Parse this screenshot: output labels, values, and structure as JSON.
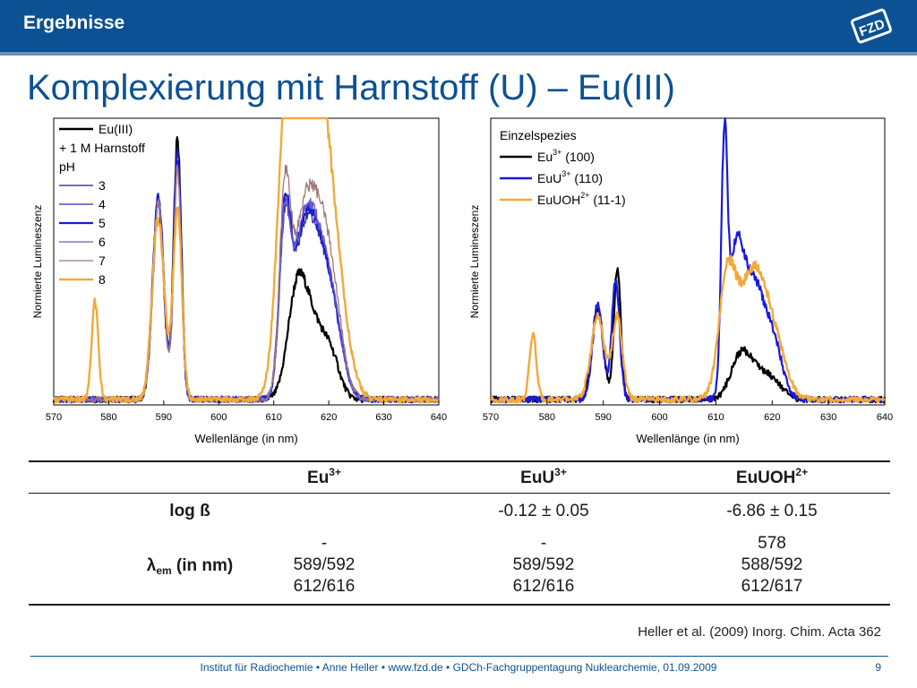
{
  "header": {
    "section": "Ergebnisse",
    "logo_text": "FZD"
  },
  "title": "Komplexierung mit Harnstoff (U) – Eu(III)",
  "colors": {
    "brand_blue": "#0b5193",
    "accent_light": "#6f8fb8",
    "orange": "#f2a93b"
  },
  "chart_data": [
    {
      "type": "line",
      "xlabel": "Wellenlänge (in nm)",
      "ylabel": "Normierte Lumineszenz",
      "xlim": [
        570,
        640
      ],
      "ylim": [
        0,
        1.05
      ],
      "x_ticks": [
        "570",
        "580",
        "590",
        "600",
        "610",
        "620",
        "630",
        "640"
      ],
      "legend_position": "top-left",
      "legend": {
        "head": "Eu(III)",
        "subtitle1": "+ 1 M Harnstoff",
        "subtitle2": "pH",
        "items": [
          "3",
          "4",
          "5",
          "6",
          "7",
          "8"
        ]
      },
      "series": [
        {
          "name": "Eu(III)",
          "color": "#000000",
          "width": 2.2,
          "peaks": [
            [
              589,
              0.72,
              1.0
            ],
            [
              592.5,
              0.95,
              0.7
            ],
            [
              614,
              0.26,
              1.6
            ],
            [
              616.5,
              0.3,
              2.4
            ],
            [
              620.5,
              0.12,
              1.6
            ]
          ]
        },
        {
          "name": "3",
          "color": "#1a1a8c",
          "width": 1.3,
          "peaks": [
            [
              589,
              0.74,
              1.0
            ],
            [
              592.5,
              0.92,
              0.7
            ],
            [
              612,
              0.56,
              1.0
            ],
            [
              615,
              0.45,
              2.0
            ],
            [
              618,
              0.44,
              2.2
            ],
            [
              621,
              0.2,
              1.8
            ]
          ]
        },
        {
          "name": "4",
          "color": "#2b2bb0",
          "width": 1.3,
          "peaks": [
            [
              589,
              0.74,
              1.0
            ],
            [
              592.5,
              0.9,
              0.7
            ],
            [
              612,
              0.55,
              1.0
            ],
            [
              615,
              0.44,
              2.0
            ],
            [
              618,
              0.43,
              2.2
            ],
            [
              621,
              0.2,
              1.8
            ]
          ]
        },
        {
          "name": "5",
          "color": "#1a1adb",
          "width": 2.2,
          "peaks": [
            [
              589,
              0.74,
              1.0
            ],
            [
              592.5,
              0.88,
              0.7
            ],
            [
              612,
              0.58,
              1.0
            ],
            [
              615,
              0.46,
              2.0
            ],
            [
              618,
              0.44,
              2.2
            ],
            [
              621,
              0.2,
              1.8
            ]
          ]
        },
        {
          "name": "6",
          "color": "#6a5acd",
          "width": 1.3,
          "peaks": [
            [
              589,
              0.73,
              1.0
            ],
            [
              592.5,
              0.86,
              0.7
            ],
            [
              612,
              0.56,
              1.0
            ],
            [
              615,
              0.46,
              2.0
            ],
            [
              618,
              0.46,
              2.2
            ],
            [
              621,
              0.2,
              1.8
            ]
          ]
        },
        {
          "name": "7",
          "color": "#a07878",
          "width": 1.3,
          "peaks": [
            [
              589,
              0.72,
              1.0
            ],
            [
              592.5,
              0.84,
              0.7
            ],
            [
              612,
              0.66,
              1.0
            ],
            [
              615,
              0.5,
              2.0
            ],
            [
              618.2,
              0.54,
              2.2
            ],
            [
              621,
              0.22,
              1.8
            ]
          ]
        },
        {
          "name": "8",
          "color": "#f2a93b",
          "width": 2.4,
          "peaks": [
            [
              577.5,
              0.36,
              0.6
            ],
            [
              589,
              0.66,
              1.1
            ],
            [
              592.5,
              0.7,
              0.8
            ],
            [
              612.2,
              0.88,
              1.6
            ],
            [
              615,
              0.78,
              2.2
            ],
            [
              618.5,
              0.84,
              2.2
            ],
            [
              621.5,
              0.3,
              2.2
            ]
          ]
        }
      ]
    },
    {
      "type": "line",
      "xlabel": "Wellenlänge (in nm)",
      "ylabel": "Normierte Lumineszenz",
      "xlim": [
        570,
        640
      ],
      "ylim": [
        0,
        1.05
      ],
      "x_ticks": [
        "570",
        "580",
        "590",
        "600",
        "610",
        "620",
        "630",
        "640"
      ],
      "legend_position": "top-left",
      "legend": {
        "head": "Einzelspezies",
        "items": [
          {
            "name": "Eu",
            "sup": "3+",
            "rest": " (100)"
          },
          {
            "name": "EuU",
            "sup": "3+",
            "rest": " (110)"
          },
          {
            "name": "EuUOH",
            "sup": "2+",
            "rest": " (11-1)"
          }
        ]
      },
      "series": [
        {
          "name": "Eu3+ (100)",
          "color": "#000000",
          "width": 2.2,
          "peaks": [
            [
              589,
              0.33,
              1.0
            ],
            [
              592.5,
              0.49,
              0.6
            ],
            [
              614,
              0.1,
              1.6
            ],
            [
              616.5,
              0.12,
              2.3
            ],
            [
              620.5,
              0.05,
              1.6
            ]
          ]
        },
        {
          "name": "EuU3+ (110)",
          "color": "#1a1adb",
          "width": 2.2,
          "peaks": [
            [
              589,
              0.35,
              0.9
            ],
            [
              592.2,
              0.44,
              0.7
            ],
            [
              611.5,
              0.88,
              0.55
            ],
            [
              613.5,
              0.4,
              1.2
            ],
            [
              616.5,
              0.44,
              2.3
            ],
            [
              620.5,
              0.14,
              1.5
            ]
          ]
        },
        {
          "name": "EuUOH2+ (11-1)",
          "color": "#f2a93b",
          "width": 2.4,
          "peaks": [
            [
              577.5,
              0.24,
              0.6
            ],
            [
              589,
              0.3,
              1.2
            ],
            [
              592.5,
              0.3,
              0.9
            ],
            [
              612,
              0.42,
              1.5
            ],
            [
              616.5,
              0.46,
              2.4
            ],
            [
              620.5,
              0.17,
              2.0
            ]
          ]
        }
      ]
    }
  ],
  "table": {
    "columns": [
      {
        "name": "Eu",
        "sup": "3+"
      },
      {
        "name": "EuU",
        "sup": "3+"
      },
      {
        "name": "EuUOH",
        "sup": "2+"
      }
    ],
    "log_label": "log ß",
    "log_values": [
      "",
      "-0.12 ± 0.05",
      "-6.86 ± 0.15"
    ],
    "lambda_label_prefix": "λ",
    "lambda_label_sub": "em",
    "lambda_label_suffix": " (in nm)",
    "lambda_values": [
      [
        "-",
        "589/592",
        "612/616"
      ],
      [
        "-",
        "589/592",
        "612/616"
      ],
      [
        "578",
        "588/592",
        "612/617"
      ]
    ]
  },
  "citation": "Heller et al. (2009) Inorg. Chim. Acta 362",
  "footer": {
    "text": "Institut für Radiochemie • Anne Heller • www.fzd.de • GDCh-Fachgruppentagung Nuklearchemie, 01.09.2009",
    "page": "9"
  }
}
